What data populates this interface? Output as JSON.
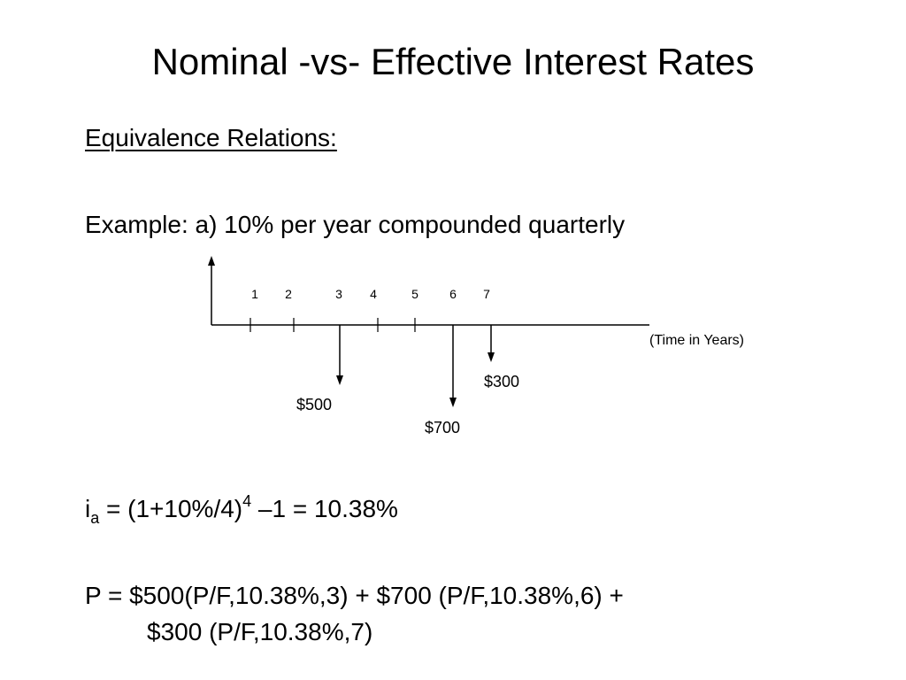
{
  "title": "Nominal -vs- Effective Interest Rates",
  "section_heading": "Equivalence Relations:",
  "example_text": "Example: a) 10% per year compounded quarterly",
  "diagram": {
    "periods": [
      "1",
      "2",
      "3",
      "4",
      "5",
      "6",
      "7"
    ],
    "axis_label": "(Time in Years)",
    "cash_flows": [
      {
        "period": "3",
        "label": "$500"
      },
      {
        "period": "6",
        "label": "$700"
      },
      {
        "period": "7",
        "label": "$300"
      }
    ]
  },
  "formula_ia": {
    "var": "i",
    "sub": "a",
    "lhs": " = (1+10%/4)",
    "exp": "4",
    "rhs": " –1 = 10.38%"
  },
  "formula_p": {
    "line1": "P =  $500(P/F,10.38%,3) + $700 (P/F,10.38%,6) +",
    "line2": "$300 (P/F,10.38%,7)"
  }
}
